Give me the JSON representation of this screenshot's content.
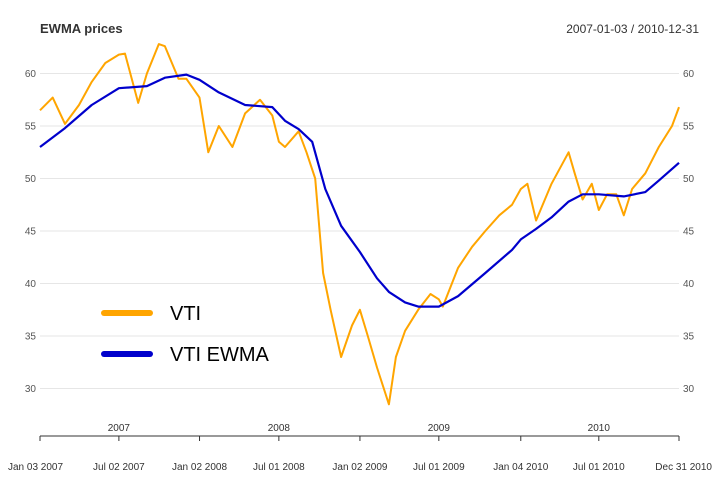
{
  "chart_data": {
    "type": "line",
    "title": "EWMA prices",
    "date_range": "2007-01-03 / 2010-12-31",
    "xlabel": "",
    "ylabel": "",
    "ylim": [
      27,
      63
    ],
    "y_ticks": [
      30,
      35,
      40,
      45,
      50,
      55,
      60
    ],
    "x_range": [
      "2007-01-03",
      "2010-12-31"
    ],
    "x_ticks": [
      {
        "date": "2007-01-03",
        "label": "Jan 03 2007"
      },
      {
        "date": "2007-07-02",
        "label": "Jul 02 2007"
      },
      {
        "date": "2008-01-02",
        "label": "Jan 02 2008"
      },
      {
        "date": "2008-07-01",
        "label": "Jul 01 2008"
      },
      {
        "date": "2009-01-02",
        "label": "Jan 02 2009"
      },
      {
        "date": "2009-07-01",
        "label": "Jul 01 2009"
      },
      {
        "date": "2010-01-04",
        "label": "Jan 04 2010"
      },
      {
        "date": "2010-07-01",
        "label": "Jul 01 2010"
      },
      {
        "date": "2010-12-31",
        "label": "Dec 31 2010"
      }
    ],
    "year_labels": [
      {
        "date": "2007-07-02",
        "label": "2007"
      },
      {
        "date": "2008-07-01",
        "label": "2008"
      },
      {
        "date": "2009-07-01",
        "label": "2009"
      },
      {
        "date": "2010-07-01",
        "label": "2010"
      }
    ],
    "grid": true,
    "legend_position": "bottom-left",
    "series": [
      {
        "name": "VTI",
        "color": "#FFA500",
        "x": [
          "2007-01-03",
          "2007-02-01",
          "2007-03-01",
          "2007-04-02",
          "2007-05-01",
          "2007-06-01",
          "2007-07-02",
          "2007-07-16",
          "2007-08-15",
          "2007-09-04",
          "2007-10-01",
          "2007-10-15",
          "2007-11-15",
          "2007-12-03",
          "2008-01-02",
          "2008-01-22",
          "2008-02-15",
          "2008-03-17",
          "2008-04-15",
          "2008-05-19",
          "2008-06-16",
          "2008-07-01",
          "2008-07-15",
          "2008-08-15",
          "2008-09-02",
          "2008-09-22",
          "2008-10-10",
          "2008-10-27",
          "2008-11-20",
          "2008-12-15",
          "2009-01-02",
          "2009-01-20",
          "2009-02-10",
          "2009-03-09",
          "2009-03-25",
          "2009-04-15",
          "2009-05-15",
          "2009-06-12",
          "2009-07-01",
          "2009-07-10",
          "2009-08-14",
          "2009-09-15",
          "2009-10-15",
          "2009-11-16",
          "2009-12-15",
          "2010-01-04",
          "2010-01-19",
          "2010-02-08",
          "2010-03-15",
          "2010-04-23",
          "2010-05-07",
          "2010-05-25",
          "2010-06-15",
          "2010-07-01",
          "2010-07-20",
          "2010-08-10",
          "2010-08-27",
          "2010-09-15",
          "2010-10-15",
          "2010-11-15",
          "2010-12-15",
          "2010-12-31"
        ],
        "values": [
          56.5,
          57.7,
          55.2,
          57.0,
          59.2,
          61.0,
          61.8,
          61.9,
          57.2,
          60.0,
          62.8,
          62.6,
          59.5,
          59.5,
          57.7,
          52.5,
          55.0,
          53.0,
          56.2,
          57.5,
          56.0,
          53.5,
          53.0,
          54.5,
          52.5,
          50.0,
          41.0,
          37.5,
          33.0,
          36.0,
          37.5,
          35.0,
          32.0,
          28.5,
          33.0,
          35.5,
          37.5,
          39.0,
          38.5,
          37.8,
          41.5,
          43.5,
          45.0,
          46.5,
          47.5,
          49.0,
          49.5,
          46.0,
          49.5,
          52.5,
          50.5,
          48.0,
          49.5,
          47.0,
          48.5,
          48.5,
          46.5,
          49.0,
          50.5,
          53.0,
          55.0,
          56.8
        ]
      },
      {
        "name": "VTI EWMA",
        "color": "#0000CC",
        "x": [
          "2007-01-03",
          "2007-03-01",
          "2007-05-01",
          "2007-07-02",
          "2007-09-04",
          "2007-10-15",
          "2007-12-03",
          "2008-01-02",
          "2008-02-15",
          "2008-04-15",
          "2008-06-16",
          "2008-07-15",
          "2008-08-15",
          "2008-09-15",
          "2008-10-15",
          "2008-11-20",
          "2009-01-02",
          "2009-02-10",
          "2009-03-09",
          "2009-04-15",
          "2009-05-15",
          "2009-06-15",
          "2009-07-01",
          "2009-08-14",
          "2009-10-15",
          "2009-12-15",
          "2010-01-04",
          "2010-02-08",
          "2010-03-15",
          "2010-04-23",
          "2010-05-25",
          "2010-07-01",
          "2010-08-27",
          "2010-10-15",
          "2010-11-15",
          "2010-12-31"
        ],
        "values": [
          53.0,
          54.8,
          57.0,
          58.6,
          58.8,
          59.6,
          59.9,
          59.4,
          58.2,
          57.0,
          56.8,
          55.5,
          54.7,
          53.5,
          49.0,
          45.5,
          43.0,
          40.5,
          39.2,
          38.2,
          37.8,
          37.8,
          37.8,
          38.8,
          41.0,
          43.2,
          44.2,
          45.2,
          46.3,
          47.8,
          48.5,
          48.5,
          48.3,
          48.7,
          49.8,
          51.5
        ]
      }
    ]
  }
}
